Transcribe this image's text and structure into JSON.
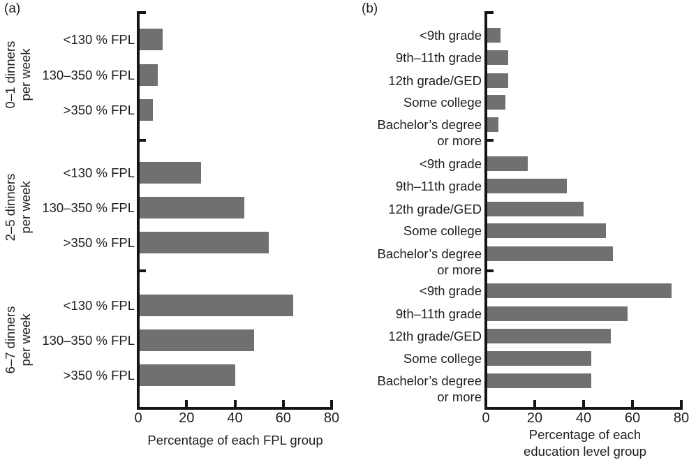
{
  "figure_title": "",
  "chart_data": [
    {
      "type": "bar",
      "orientation": "horizontal",
      "panel_label": "(a)",
      "xlabel_lines": [
        "Percentage of each FPL group"
      ],
      "xlim": [
        0,
        80
      ],
      "xticks": [
        0,
        20,
        40,
        60,
        80
      ],
      "bar_color": "#707073",
      "grid": false,
      "groups": [
        {
          "label_lines": [
            "0–1 dinners",
            "per week"
          ],
          "categories": [
            "<130 % FPL",
            "130–350 % FPL",
            ">350 % FPL"
          ],
          "values": [
            10,
            8,
            6
          ]
        },
        {
          "label_lines": [
            "2–5 dinners",
            "per week"
          ],
          "categories": [
            "<130 % FPL",
            "130–350 % FPL",
            ">350 % FPL"
          ],
          "values": [
            26,
            44,
            54
          ]
        },
        {
          "label_lines": [
            "6–7 dinners",
            "per week"
          ],
          "categories": [
            "<130 % FPL",
            "130–350 % FPL",
            ">350 % FPL"
          ],
          "values": [
            64,
            48,
            40
          ]
        }
      ]
    },
    {
      "type": "bar",
      "orientation": "horizontal",
      "panel_label": "(b)",
      "xlabel_lines": [
        "Percentage of each",
        "education level group"
      ],
      "xlim": [
        0,
        80
      ],
      "xticks": [
        0,
        20,
        40,
        60,
        80
      ],
      "bar_color": "#707073",
      "grid": false,
      "groups": [
        {
          "label_lines": [],
          "categories": [
            "<9th grade",
            "9th–11th grade",
            "12th grade/GED",
            "Some college",
            "Bachelor’s degree or more"
          ],
          "values": [
            6,
            9,
            9,
            8,
            5
          ]
        },
        {
          "label_lines": [],
          "categories": [
            "<9th grade",
            "9th–11th grade",
            "12th grade/GED",
            "Some college",
            "Bachelor’s degree or more"
          ],
          "values": [
            17,
            33,
            40,
            49,
            52
          ]
        },
        {
          "label_lines": [],
          "categories": [
            "<9th grade",
            "9th–11th grade",
            "12th grade/GED",
            "Some college",
            "Bachelor’s degree or more"
          ],
          "values": [
            76,
            58,
            51,
            43,
            43
          ]
        }
      ]
    }
  ]
}
